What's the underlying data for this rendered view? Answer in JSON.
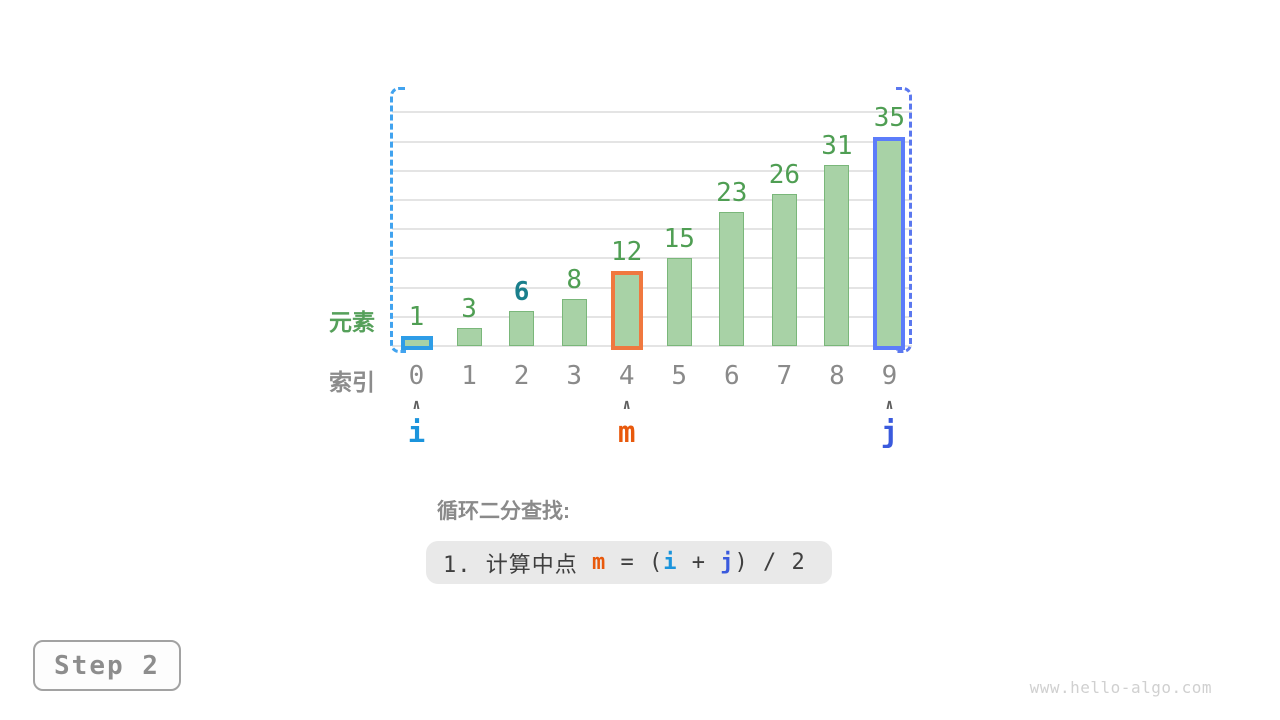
{
  "watermark": "www.hello-algo.com",
  "step": {
    "label": "Step 2"
  },
  "labels": {
    "element_axis": "元素",
    "index_axis": "索引",
    "caret_glyph": "∧"
  },
  "caption": {
    "title": "循环二分查找:",
    "formula_parts": [
      {
        "text": "1. 计算中点 ",
        "color": "#3f3f3f",
        "bold": false
      },
      {
        "text": "m",
        "color": "#e8590c",
        "bold": true
      },
      {
        "text": " = (",
        "color": "#3f3f3f",
        "bold": false
      },
      {
        "text": "i",
        "color": "#1b94dc",
        "bold": true
      },
      {
        "text": " + ",
        "color": "#3f3f3f",
        "bold": false
      },
      {
        "text": "j",
        "color": "#3a5add",
        "bold": true
      },
      {
        "text": ") / 2",
        "color": "#3f3f3f",
        "bold": false
      }
    ]
  },
  "pointers": [
    {
      "name": "i",
      "index": 0,
      "color": "#1b94dc",
      "bar_outline": "#2e9de7"
    },
    {
      "name": "m",
      "index": 4,
      "color": "#e8590c",
      "bar_outline": "#f0783f"
    },
    {
      "name": "j",
      "index": 9,
      "color": "#3a5add",
      "bar_outline": "#5c7cfa"
    }
  ],
  "chart_data": {
    "type": "bar",
    "title": "",
    "xlabel": "索引",
    "ylabel": "元素",
    "categories": [
      "0",
      "1",
      "2",
      "3",
      "4",
      "5",
      "6",
      "7",
      "8",
      "9"
    ],
    "values": [
      1,
      3,
      6,
      8,
      12,
      15,
      23,
      26,
      31,
      35
    ],
    "ylim": [
      0,
      40
    ],
    "gridline_step": 5,
    "grid": true,
    "legend": false,
    "target_index": 2,
    "target_value": 6,
    "annotations": [
      "i at index 0",
      "m at index 4",
      "j at index 9",
      "search range bracketed from index 0 to 9"
    ]
  },
  "colors": {
    "bar_fill": "#a8d2a6",
    "bar_border": "#7ab77a",
    "value_label": "#4f9e53",
    "target_value_label": "#1a7f8c",
    "element_axis_label": "#55a05a",
    "index_axis_label": "#8c8c8c",
    "gridline": "#e4e4e4",
    "left_bracket": "#41a3ef",
    "right_bracket": "#5b78ef"
  }
}
